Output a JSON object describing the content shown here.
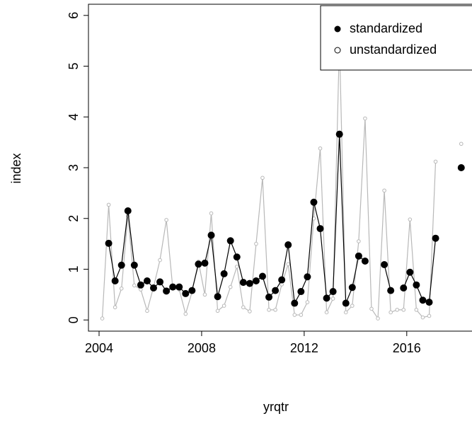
{
  "chart_data": {
    "type": "line",
    "x_label": "yrqtr",
    "y_label": "index",
    "x": [
      2004.125,
      2004.375,
      2004.625,
      2004.875,
      2005.125,
      2005.375,
      2005.625,
      2005.875,
      2006.125,
      2006.375,
      2006.625,
      2006.875,
      2007.125,
      2007.375,
      2007.625,
      2007.875,
      2008.125,
      2008.375,
      2008.625,
      2008.875,
      2009.125,
      2009.375,
      2009.625,
      2009.875,
      2010.125,
      2010.375,
      2010.625,
      2010.875,
      2011.125,
      2011.375,
      2011.625,
      2011.875,
      2012.125,
      2012.375,
      2012.625,
      2012.875,
      2013.125,
      2013.375,
      2013.625,
      2013.875,
      2014.125,
      2014.375,
      2014.625,
      2014.875,
      2015.125,
      2015.375,
      2015.625,
      2015.875,
      2016.125,
      2016.375,
      2016.625,
      2016.875,
      2017.125,
      2017.375,
      2017.625,
      2017.875,
      2018.125
    ],
    "series": [
      {
        "name": "unstandardized",
        "color": "#b8b8b8",
        "marker": "open",
        "values": [
          0.03,
          2.27,
          0.25,
          0.62,
          2.05,
          0.68,
          0.6,
          0.18,
          0.65,
          1.18,
          1.97,
          0.62,
          0.6,
          0.12,
          0.55,
          1.15,
          0.5,
          2.1,
          0.18,
          0.28,
          0.65,
          1.05,
          0.25,
          0.17,
          1.5,
          2.8,
          0.2,
          0.2,
          0.7,
          1.1,
          0.1,
          0.1,
          0.35,
          2.0,
          3.38,
          0.15,
          0.42,
          5.5,
          0.15,
          0.28,
          1.55,
          3.97,
          0.22,
          0.03,
          2.55,
          0.15,
          0.2,
          0.2,
          1.98,
          0.2,
          0.05,
          0.08,
          3.12,
          null,
          null,
          null,
          3.47
        ]
      },
      {
        "name": "standardized",
        "color": "#000000",
        "marker": "filled",
        "values": [
          null,
          1.51,
          0.77,
          1.08,
          2.15,
          1.08,
          0.69,
          0.77,
          0.63,
          0.75,
          0.57,
          0.65,
          0.65,
          0.52,
          0.58,
          1.1,
          1.12,
          1.67,
          0.46,
          0.91,
          1.56,
          1.24,
          0.74,
          0.72,
          0.77,
          0.86,
          0.45,
          0.58,
          0.79,
          1.48,
          0.33,
          0.56,
          0.85,
          2.32,
          1.8,
          0.43,
          0.56,
          3.66,
          0.33,
          0.64,
          1.26,
          1.16,
          null,
          null,
          1.09,
          0.58,
          null,
          0.63,
          0.94,
          0.69,
          0.39,
          0.35,
          1.61,
          null,
          null,
          null,
          3.0
        ]
      }
    ],
    "xlim": [
      2003.586,
      2018.6
    ],
    "ylim": [
      -0.22,
      6.22
    ],
    "xticks": [
      2004,
      2008,
      2012,
      2016
    ],
    "yticks": [
      0,
      1,
      2,
      3,
      4,
      5,
      6
    ],
    "legend_position": "top-right",
    "legend_order": [
      1,
      0
    ]
  }
}
